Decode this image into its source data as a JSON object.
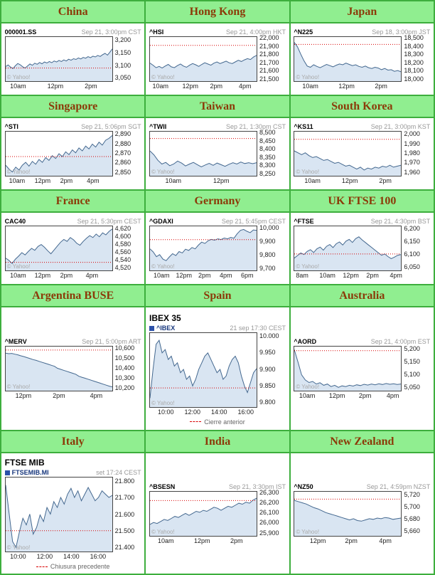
{
  "watermark": "© Yahoo!",
  "colors": {
    "border_green": "#3DAE3D",
    "header_green": "#90EE90",
    "header_text": "#8B3A08",
    "line": "#44688F",
    "fill": "#D9E5F2",
    "prev_close": "#D80000"
  },
  "chart_data": [
    {
      "type": "area",
      "country": "China",
      "symbol": "000001.SS",
      "timestamp": "Sep 21, 3:00pm CST",
      "ymin": 3040,
      "ymax": 3215,
      "prev_close": 3092,
      "yticks": [
        [
          3200,
          "3,200"
        ],
        [
          3150,
          "3,150"
        ],
        [
          3100,
          "3,100"
        ],
        [
          3050,
          "3,050"
        ]
      ],
      "xlabels": [
        [
          "10am",
          0.05
        ],
        [
          "12pm",
          0.4
        ],
        [
          "2pm",
          0.75
        ]
      ],
      "values": [
        3098,
        3104,
        3096,
        3090,
        3101,
        3110,
        3105,
        3097,
        3092,
        3100,
        3108,
        3103,
        3111,
        3107,
        3114,
        3109,
        3116,
        3112,
        3118,
        3113,
        3120,
        3116,
        3122,
        3118,
        3124,
        3120,
        3127,
        3123,
        3129,
        3126,
        3132,
        3128,
        3134,
        3131,
        3137,
        3133,
        3139,
        3136,
        3142,
        3138,
        3145,
        3150,
        3143,
        3155,
        3168
      ]
    },
    {
      "type": "area",
      "country": "Hong Kong",
      "symbol": "^HSI",
      "timestamp": "Sep 21, 4:00pm HKT",
      "ymin": 21480,
      "ymax": 22020,
      "prev_close": 21918,
      "yticks": [
        [
          22000,
          "22,000"
        ],
        [
          21900,
          "21,900"
        ],
        [
          21800,
          "21,800"
        ],
        [
          21700,
          "21,700"
        ],
        [
          21600,
          "21,600"
        ],
        [
          21500,
          "21,500"
        ]
      ],
      "xlabels": [
        [
          "10am",
          0.03
        ],
        [
          "12pm",
          0.31
        ],
        [
          "2pm",
          0.57
        ],
        [
          "4pm",
          0.84
        ]
      ],
      "values": [
        21700,
        21675,
        21645,
        21660,
        21640,
        21665,
        21685,
        21655,
        21645,
        21670,
        21690,
        21665,
        21650,
        21675,
        21695,
        21680,
        21660,
        21685,
        21705,
        21690,
        21675,
        21700,
        21715,
        21695,
        21710,
        21725,
        21705,
        21695,
        21715,
        21735,
        21720,
        21740,
        21755,
        21745,
        21775,
        21795
      ]
    },
    {
      "type": "area",
      "country": "Japan",
      "symbol": "^N225",
      "timestamp": "Sep 18, 3:00pm JST",
      "ymin": 17980,
      "ymax": 18520,
      "prev_close": 18430,
      "yticks": [
        [
          18500,
          "18,500"
        ],
        [
          18400,
          "18,400"
        ],
        [
          18300,
          "18,300"
        ],
        [
          18200,
          "18,200"
        ],
        [
          18100,
          "18,100"
        ],
        [
          18000,
          "18,000"
        ]
      ],
      "xlabels": [
        [
          "10am",
          0.08
        ],
        [
          "12pm",
          0.42
        ],
        [
          "2pm",
          0.76
        ]
      ],
      "values": [
        18455,
        18400,
        18310,
        18230,
        18165,
        18150,
        18180,
        18160,
        18145,
        18165,
        18185,
        18170,
        18155,
        18175,
        18190,
        18180,
        18200,
        18185,
        18170,
        18180,
        18160,
        18150,
        18165,
        18145,
        18135,
        18150,
        18140,
        18120,
        18135,
        18115,
        18120,
        18100,
        18110,
        18095
      ]
    },
    {
      "type": "area",
      "country": "Singapore",
      "symbol": "^STI",
      "timestamp": "Sep 21, 5:06pm SGT",
      "ymin": 2847,
      "ymax": 2893,
      "prev_close": 2867,
      "yticks": [
        [
          2890,
          "2,890"
        ],
        [
          2880,
          "2,880"
        ],
        [
          2870,
          "2,870"
        ],
        [
          2860,
          "2,860"
        ],
        [
          2850,
          "2,850"
        ]
      ],
      "xlabels": [
        [
          "10am",
          0.04
        ],
        [
          "12pm",
          0.28
        ],
        [
          "2pm",
          0.52
        ],
        [
          "4pm",
          0.77
        ]
      ],
      "values": [
        2858,
        2854,
        2851,
        2856,
        2853,
        2858,
        2861,
        2857,
        2862,
        2859,
        2864,
        2861,
        2866,
        2863,
        2868,
        2865,
        2870,
        2867,
        2872,
        2869,
        2874,
        2871,
        2876,
        2873,
        2878,
        2875,
        2880,
        2877,
        2882,
        2879,
        2884,
        2886,
        2889
      ]
    },
    {
      "type": "area",
      "country": "Taiwan",
      "symbol": "^TWII",
      "timestamp": "Sep 21, 1:30pm CST",
      "ymin": 8240,
      "ymax": 8510,
      "prev_close": 8468,
      "yticks": [
        [
          8500,
          "8,500"
        ],
        [
          8450,
          "8,450"
        ],
        [
          8400,
          "8,400"
        ],
        [
          8350,
          "8,350"
        ],
        [
          8300,
          "8,300"
        ],
        [
          8250,
          "8,250"
        ]
      ],
      "xlabels": [
        [
          "10am",
          0.15
        ],
        [
          "12pm",
          0.6
        ]
      ],
      "values": [
        8392,
        8368,
        8335,
        8312,
        8322,
        8302,
        8312,
        8330,
        8318,
        8300,
        8312,
        8322,
        8308,
        8295,
        8306,
        8316,
        8304,
        8318,
        8308,
        8298,
        8310,
        8320,
        8312,
        8324,
        8315,
        8320,
        8314,
        8320
      ]
    },
    {
      "type": "area",
      "country": "South Korea",
      "symbol": "^KS11",
      "timestamp": "Sep 21, 3:00pm KST",
      "ymin": 1957,
      "ymax": 2003,
      "prev_close": 1995,
      "yticks": [
        [
          2000,
          "2,000"
        ],
        [
          1990,
          "1,990"
        ],
        [
          1980,
          "1,980"
        ],
        [
          1970,
          "1,970"
        ],
        [
          1960,
          "1,960"
        ]
      ],
      "xlabels": [
        [
          "10am",
          0.1
        ],
        [
          "12pm",
          0.45
        ],
        [
          "2pm",
          0.8
        ]
      ],
      "values": [
        1983,
        1981,
        1979,
        1981,
        1978,
        1976,
        1977,
        1975,
        1973,
        1974,
        1972,
        1970,
        1971,
        1969,
        1967,
        1968,
        1966,
        1964,
        1966,
        1963,
        1965,
        1964,
        1966,
        1965,
        1967,
        1966,
        1968,
        1966,
        1967,
        1968
      ]
    },
    {
      "type": "area",
      "country": "France",
      "symbol": "CAC40",
      "timestamp": "Sep 21, 5:30pm CEST",
      "ymin": 4514,
      "ymax": 4628,
      "prev_close": 4535,
      "yticks": [
        [
          4620,
          "4,620"
        ],
        [
          4600,
          "4,600"
        ],
        [
          4580,
          "4,580"
        ],
        [
          4560,
          "4,560"
        ],
        [
          4540,
          "4,540"
        ],
        [
          4520,
          "4,520"
        ]
      ],
      "xlabels": [
        [
          "10am",
          0.05
        ],
        [
          "12pm",
          0.28
        ],
        [
          "2pm",
          0.52
        ],
        [
          "4pm",
          0.76
        ]
      ],
      "values": [
        4546,
        4540,
        4532,
        4543,
        4551,
        4560,
        4554,
        4563,
        4571,
        4566,
        4576,
        4581,
        4574,
        4565,
        4557,
        4567,
        4577,
        4587,
        4594,
        4589,
        4599,
        4593,
        4584,
        4579,
        4589,
        4597,
        4604,
        4599,
        4608,
        4601,
        4611,
        4606,
        4615,
        4621
      ]
    },
    {
      "type": "area",
      "country": "Germany",
      "symbol": "^GDAXI",
      "timestamp": "Sep 21, 5:45pm CEST",
      "ymin": 9688,
      "ymax": 10015,
      "prev_close": 9916,
      "yticks": [
        [
          10000,
          "10,000"
        ],
        [
          9900,
          "9,900"
        ],
        [
          9800,
          "9,800"
        ],
        [
          9700,
          "9,700"
        ]
      ],
      "xlabels": [
        [
          "10am",
          0.04
        ],
        [
          "12pm",
          0.25
        ],
        [
          "2pm",
          0.46
        ],
        [
          "4pm",
          0.66
        ],
        [
          "6pm",
          0.86
        ]
      ],
      "values": [
        9848,
        9825,
        9790,
        9805,
        9772,
        9760,
        9788,
        9812,
        9798,
        9828,
        9818,
        9845,
        9836,
        9858,
        9848,
        9876,
        9898,
        9888,
        9908,
        9918,
        9912,
        9922,
        9917,
        9928,
        9922,
        9932,
        9927,
        9960,
        9985,
        9992,
        9978,
        9968,
        9988,
        9985
      ]
    },
    {
      "type": "area",
      "country": "UK FTSE 100",
      "symbol": "^FTSE",
      "timestamp": "Sep 21, 4:30pm BST",
      "ymin": 6040,
      "ymax": 6212,
      "prev_close": 6104,
      "yticks": [
        [
          6200,
          "6,200"
        ],
        [
          6150,
          "6,150"
        ],
        [
          6100,
          "6,100"
        ],
        [
          6050,
          "6,050"
        ]
      ],
      "xlabels": [
        [
          "8am",
          0.02
        ],
        [
          "10am",
          0.24
        ],
        [
          "12pm",
          0.46
        ],
        [
          "2pm",
          0.68
        ],
        [
          "4pm",
          0.9
        ]
      ],
      "values": [
        6088,
        6098,
        6108,
        6102,
        6114,
        6121,
        6110,
        6124,
        6131,
        6119,
        6134,
        6141,
        6129,
        6144,
        6151,
        6139,
        6154,
        6161,
        6149,
        6164,
        6171,
        6159,
        6149,
        6139,
        6129,
        6119,
        6109,
        6099,
        6104,
        6094,
        6086,
        6092,
        6099,
        6102
      ]
    },
    {
      "type": "area",
      "country": "Argentina BUSE",
      "symbol": "^MERV",
      "timestamp": "Sep 21, 5:00pm ART",
      "ymin": 10180,
      "ymax": 10625,
      "prev_close": 10590,
      "yticks": [
        [
          10600,
          "10,600"
        ],
        [
          10500,
          "10,500"
        ],
        [
          10400,
          "10,400"
        ],
        [
          10300,
          "10,300"
        ],
        [
          10200,
          "10,200"
        ]
      ],
      "xlabels": [
        [
          "12pm",
          0.1
        ],
        [
          "2pm",
          0.45
        ],
        [
          "4pm",
          0.8
        ]
      ],
      "values": [
        10558,
        10553,
        10556,
        10548,
        10542,
        10532,
        10524,
        10514,
        10504,
        10494,
        10486,
        10476,
        10466,
        10456,
        10446,
        10436,
        10426,
        10406,
        10396,
        10386,
        10376,
        10366,
        10356,
        10346,
        10326,
        10316,
        10306,
        10296,
        10286,
        10276,
        10266,
        10256,
        10246,
        10236,
        10226,
        10218
      ]
    },
    {
      "type": "area",
      "country": "Spain",
      "big": true,
      "title": "IBEX 35",
      "symbol": "^IBEX",
      "timestamp": "21 sep 17:30 CEST",
      "footer": "Cierre anterior",
      "ymin": 9788,
      "ymax": 10012,
      "prev_close": 9846,
      "yticks": [
        [
          10000,
          "10.000"
        ],
        [
          9950,
          "9.950"
        ],
        [
          9900,
          "9.900"
        ],
        [
          9850,
          "9.850"
        ],
        [
          9800,
          "9.800"
        ]
      ],
      "xlabels": [
        [
          "10:00",
          0.08
        ],
        [
          "12:00",
          0.33
        ],
        [
          "14:00",
          0.58
        ],
        [
          "16:00",
          0.83
        ]
      ],
      "values": [
        9815,
        9902,
        9978,
        9990,
        9952,
        9962,
        9932,
        9942,
        9912,
        9922,
        9892,
        9902,
        9872,
        9882,
        9852,
        9872,
        9902,
        9922,
        9942,
        9952,
        9932,
        9912,
        9892,
        9902,
        9872,
        9882,
        9912,
        9932,
        9942,
        9922,
        9882,
        9852,
        9832,
        9862,
        9892,
        9904
      ]
    },
    {
      "type": "area",
      "country": "Australia",
      "symbol": "^AORD",
      "timestamp": "Sep 21, 4:00pm EST",
      "ymin": 5040,
      "ymax": 5212,
      "prev_close": 5196,
      "yticks": [
        [
          5200,
          "5,200"
        ],
        [
          5150,
          "5,150"
        ],
        [
          5100,
          "5,100"
        ],
        [
          5050,
          "5,050"
        ]
      ],
      "xlabels": [
        [
          "10am",
          0.05
        ],
        [
          "12pm",
          0.33
        ],
        [
          "2pm",
          0.61
        ],
        [
          "4pm",
          0.87
        ]
      ],
      "values": [
        5200,
        5152,
        5102,
        5082,
        5072,
        5076,
        5066,
        5071,
        5061,
        5066,
        5056,
        5061,
        5053,
        5059,
        5056,
        5061,
        5058,
        5063,
        5060,
        5065,
        5062,
        5066,
        5063,
        5067,
        5064,
        5068,
        5065,
        5067,
        5064,
        5066
      ]
    },
    {
      "type": "area",
      "country": "Italy",
      "big": true,
      "title": "FTSE MIB",
      "symbol": "FTSEMIB.MI",
      "timestamp": "set 17:24 CEST",
      "footer": "Chiusura precedente",
      "ymin": 21380,
      "ymax": 21825,
      "prev_close": 21505,
      "yticks": [
        [
          21800,
          "21.800"
        ],
        [
          21700,
          "21.700"
        ],
        [
          21600,
          "21.600"
        ],
        [
          21500,
          "21.500"
        ],
        [
          21400,
          "21.400"
        ]
      ],
      "xlabels": [
        [
          "10:00",
          0.05
        ],
        [
          "12:00",
          0.3
        ],
        [
          "14:00",
          0.55
        ],
        [
          "16:00",
          0.8
        ]
      ],
      "values": [
        21780,
        21610,
        21440,
        21405,
        21500,
        21580,
        21540,
        21605,
        21485,
        21525,
        21600,
        21560,
        21645,
        21605,
        21680,
        21645,
        21705,
        21665,
        21725,
        21760,
        21705,
        21745,
        21685,
        21725,
        21765,
        21725,
        21685,
        21705,
        21745,
        21725,
        21705,
        21718
      ]
    },
    {
      "type": "area",
      "country": "India",
      "symbol": "^BSESN",
      "timestamp": "Sep 21, 3:30pm IST",
      "ymin": 25880,
      "ymax": 26315,
      "prev_close": 26228,
      "yticks": [
        [
          26300,
          "26,300"
        ],
        [
          26200,
          "26,200"
        ],
        [
          26100,
          "26,100"
        ],
        [
          26000,
          "26,000"
        ],
        [
          25900,
          "25,900"
        ]
      ],
      "xlabels": [
        [
          "10am",
          0.08
        ],
        [
          "12pm",
          0.42
        ],
        [
          "2pm",
          0.76
        ]
      ],
      "values": [
        25992,
        26012,
        26002,
        26022,
        26042,
        26032,
        26052,
        26072,
        26062,
        26082,
        26102,
        26082,
        26102,
        26122,
        26112,
        26132,
        26122,
        26142,
        26162,
        26152,
        26132,
        26152,
        26172,
        26162,
        26182,
        26202,
        26192,
        26212,
        26202,
        26232,
        26252
      ]
    },
    {
      "type": "area",
      "country": "New Zealand",
      "symbol": "^NZ50",
      "timestamp": "Sep 21, 4:59pm NZST",
      "ymin": 5654,
      "ymax": 5726,
      "prev_close": 5714,
      "yticks": [
        [
          5720,
          "5,720"
        ],
        [
          5700,
          "5,700"
        ],
        [
          5680,
          "5,680"
        ],
        [
          5660,
          "5,660"
        ]
      ],
      "xlabels": [
        [
          "12pm",
          0.15
        ],
        [
          "2pm",
          0.48
        ],
        [
          "4pm",
          0.8
        ]
      ],
      "values": [
        5712,
        5710,
        5708,
        5706,
        5703,
        5700,
        5698,
        5695,
        5692,
        5690,
        5688,
        5686,
        5684,
        5682,
        5680,
        5682,
        5679,
        5678,
        5680,
        5682,
        5681,
        5683,
        5682,
        5684,
        5683,
        5681,
        5682,
        5683
      ]
    }
  ]
}
